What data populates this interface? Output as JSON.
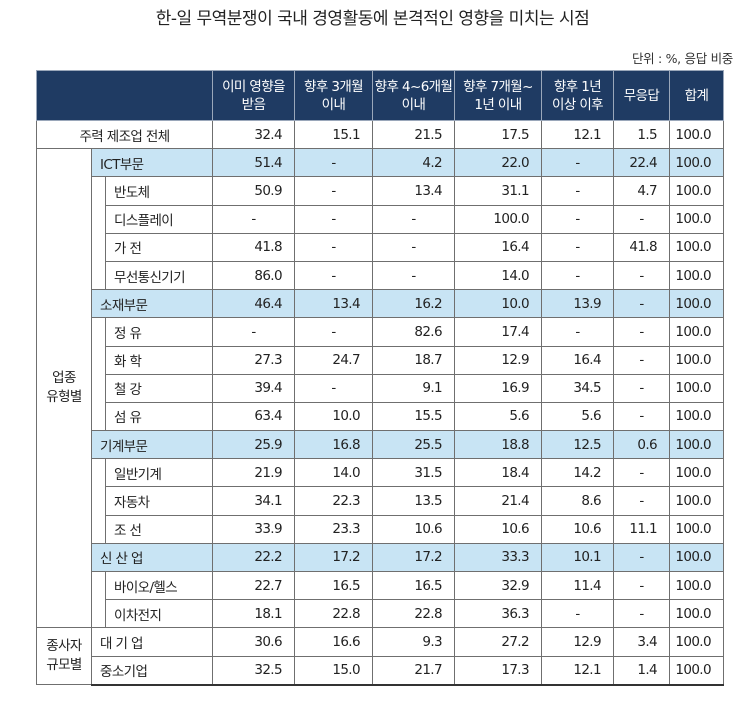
{
  "title": "한-일 무역분쟁이 국내 경영활동에 본격적인 영향을 미치는 시점",
  "unit_note": "단위 : %, 응답 비중",
  "headers": [
    "이미 영향을 받음",
    "향후 3개월 이내",
    "향후 4~6개월 이내",
    "향후 7개월~ 1년 이내",
    "향후 1년 이상 이후",
    "무응답",
    "합계"
  ],
  "header_lines": [
    [
      "이미 영향을",
      "받음"
    ],
    [
      "향후 3개월",
      "이내"
    ],
    [
      "향후 4~6개월",
      "이내"
    ],
    [
      "향후 7개월~",
      "1년 이내"
    ],
    [
      "향후 1년",
      "이상 이후"
    ],
    [
      "무응답",
      ""
    ],
    [
      "합계",
      ""
    ]
  ],
  "total_row": {
    "label": "주력 제조업 전체",
    "values": [
      "32.4",
      "15.1",
      "21.5",
      "17.5",
      "12.1",
      "1.5",
      "100.0"
    ]
  },
  "groups": [
    {
      "label_lines": [
        "업종",
        "유형별"
      ],
      "sections": [
        {
          "label": "ICT부문",
          "values": [
            "51.4",
            "-",
            "4.2",
            "22.0",
            "-",
            "22.4",
            "100.0"
          ],
          "rows": [
            {
              "label": "반도체",
              "values": [
                "50.9",
                "-",
                "13.4",
                "31.1",
                "-",
                "4.7",
                "100.0"
              ]
            },
            {
              "label": "디스플레이",
              "values": [
                "-",
                "-",
                "-",
                "100.0",
                "-",
                "-",
                "100.0"
              ]
            },
            {
              "label": "가 전",
              "values": [
                "41.8",
                "-",
                "-",
                "16.4",
                "-",
                "41.8",
                "100.0"
              ]
            },
            {
              "label": "무선통신기기",
              "values": [
                "86.0",
                "-",
                "-",
                "14.0",
                "-",
                "-",
                "100.0"
              ]
            }
          ]
        },
        {
          "label": "소재부문",
          "values": [
            "46.4",
            "13.4",
            "16.2",
            "10.0",
            "13.9",
            "-",
            "100.0"
          ],
          "rows": [
            {
              "label": "정 유",
              "values": [
                "-",
                "-",
                "82.6",
                "17.4",
                "-",
                "-",
                "100.0"
              ]
            },
            {
              "label": "화 학",
              "values": [
                "27.3",
                "24.7",
                "18.7",
                "12.9",
                "16.4",
                "-",
                "100.0"
              ]
            },
            {
              "label": "철 강",
              "values": [
                "39.4",
                "-",
                "9.1",
                "16.9",
                "34.5",
                "-",
                "100.0"
              ]
            },
            {
              "label": "섬 유",
              "values": [
                "63.4",
                "10.0",
                "15.5",
                "5.6",
                "5.6",
                "-",
                "100.0"
              ]
            }
          ]
        },
        {
          "label": "기계부문",
          "values": [
            "25.9",
            "16.8",
            "25.5",
            "18.8",
            "12.5",
            "0.6",
            "100.0"
          ],
          "rows": [
            {
              "label": "일반기계",
              "values": [
                "21.9",
                "14.0",
                "31.5",
                "18.4",
                "14.2",
                "-",
                "100.0"
              ]
            },
            {
              "label": "자동차",
              "values": [
                "34.1",
                "22.3",
                "13.5",
                "21.4",
                "8.6",
                "-",
                "100.0"
              ]
            },
            {
              "label": "조 선",
              "values": [
                "33.9",
                "23.3",
                "10.6",
                "10.6",
                "10.6",
                "11.1",
                "100.0"
              ]
            }
          ]
        },
        {
          "label": "신 산 업",
          "values": [
            "22.2",
            "17.2",
            "17.2",
            "33.3",
            "10.1",
            "-",
            "100.0"
          ],
          "rows": [
            {
              "label": "바이오/헬스",
              "values": [
                "22.7",
                "16.5",
                "16.5",
                "32.9",
                "11.4",
                "-",
                "100.0"
              ]
            },
            {
              "label": "이차전지",
              "values": [
                "18.1",
                "22.8",
                "22.8",
                "36.3",
                "-",
                "-",
                "100.0"
              ]
            }
          ]
        }
      ]
    },
    {
      "label_lines": [
        "종사자",
        "규모별"
      ],
      "sections": [],
      "rows": [
        {
          "label": "대 기 업",
          "values": [
            "30.6",
            "16.6",
            "9.3",
            "27.2",
            "12.9",
            "3.4",
            "100.0"
          ]
        },
        {
          "label": "중소기업",
          "values": [
            "32.5",
            "15.0",
            "21.7",
            "17.3",
            "12.1",
            "1.4",
            "100.0"
          ]
        }
      ]
    }
  ]
}
